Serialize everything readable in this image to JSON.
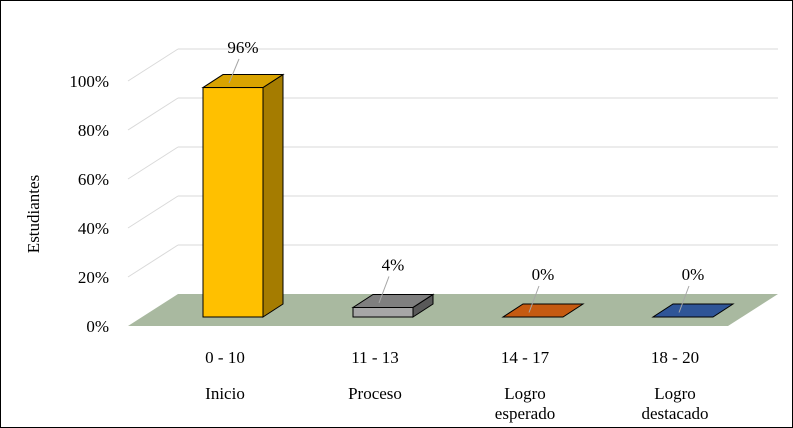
{
  "chart_data": {
    "type": "bar",
    "three_d": true,
    "categories": [
      "0 - 10",
      "11 - 13",
      "14 - 17",
      "18 - 20"
    ],
    "category_groups": [
      [
        "Inicio"
      ],
      [
        "Proceso"
      ],
      [
        "Logro",
        "esperado"
      ],
      [
        "Logro",
        "destacado"
      ]
    ],
    "values": [
      96,
      4,
      0,
      0
    ],
    "data_labels": [
      "96%",
      "4%",
      "0%",
      "0%"
    ],
    "ylabel": "Estudiantes",
    "ylim": [
      0,
      100
    ],
    "yticks": [
      "0%",
      "20%",
      "40%",
      "60%",
      "80%",
      "100%"
    ],
    "grid": true,
    "legend": "none",
    "colors": {
      "bars": [
        "#FFC000",
        "#A6A6A6",
        "#C55A11",
        "#2F5597"
      ],
      "bar_tops": [
        "#D9A300",
        "#7F7F7F",
        "#A04A0E",
        "#264478"
      ],
      "bar_sides": [
        "#A57C00",
        "#595959",
        "#7A380A",
        "#1C3560"
      ],
      "floor": "#A9B9A0",
      "gridline": "#D9D9D9"
    }
  }
}
